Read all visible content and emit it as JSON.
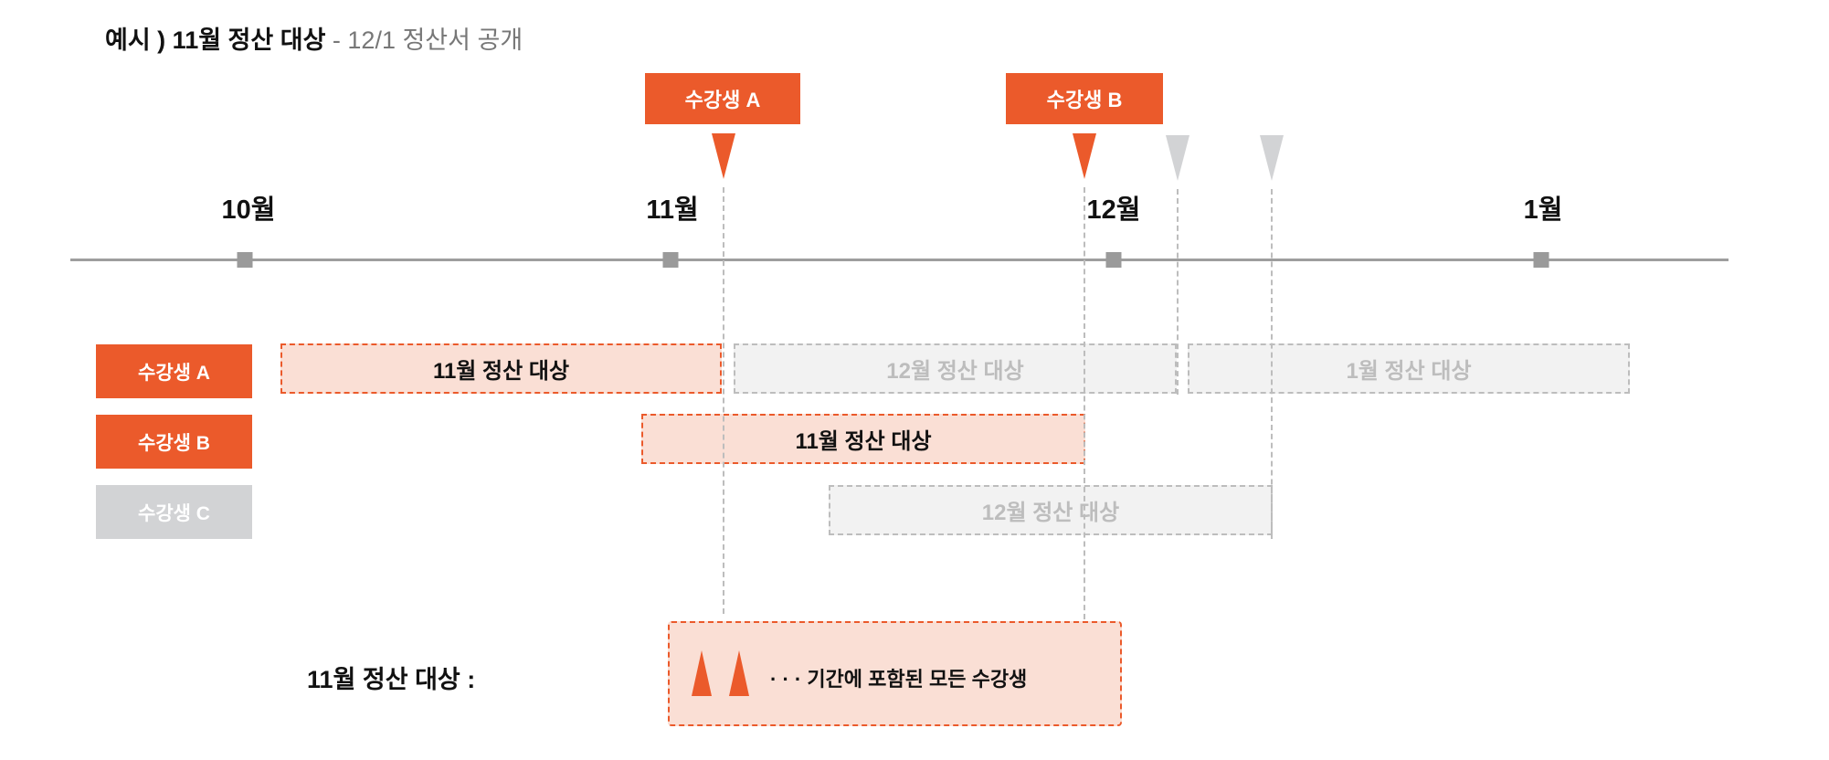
{
  "title": {
    "main": "예시 ) 11월 정산 대상",
    "sub": " - 12/1 정산서 공개"
  },
  "markers": [
    {
      "label": "수강생 A",
      "color": "#EB5A2B"
    },
    {
      "label": "수강생 B",
      "color": "#EB5A2B"
    }
  ],
  "gray_marker_color": "#D2D3D5",
  "months": [
    "10월",
    "11월",
    "12월",
    "1월"
  ],
  "rows": [
    {
      "label": "수강생 A",
      "active": true,
      "bars": [
        {
          "label": "11월 정산 대상",
          "included": true
        },
        {
          "label": "12월 정산 대상",
          "included": false
        },
        {
          "label": "1월 정산 대상",
          "included": false
        }
      ]
    },
    {
      "label": "수강생 B",
      "active": true,
      "bars": [
        {
          "label": "11월 정산 대상",
          "included": true
        }
      ]
    },
    {
      "label": "수강생 C",
      "active": false,
      "bars": [
        {
          "label": "12월 정산 대상",
          "included": false
        }
      ]
    }
  ],
  "legend": {
    "label": "11월 정산 대상 :",
    "text": "· · ·  기간에 포함된 모든 수강생"
  },
  "colors": {
    "accent": "#EB5A2B",
    "accent_light": "#FADFD5",
    "inactive": "#D2D3D5",
    "inactive_light": "#F2F2F2",
    "axis": "#9E9E9E"
  }
}
